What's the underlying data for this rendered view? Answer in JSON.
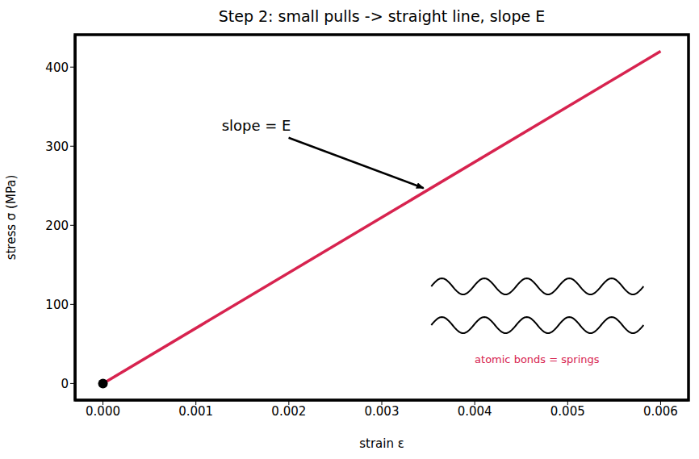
{
  "chart_data": {
    "type": "line",
    "title": "Step 2: small pulls -> straight line, slope E",
    "x_label": "strain ε",
    "y_label": "stress σ (MPa)",
    "x": [
      0,
      0.006
    ],
    "values": [
      0,
      420
    ],
    "color": "#d7234f",
    "points": {
      "x": [
        0
      ],
      "y": [
        0
      ],
      "color": "#000000"
    },
    "xlim": [
      -0.0003,
      0.0063
    ],
    "ylim": [
      -21,
      441
    ],
    "xticks": [
      {
        "value": 0,
        "label": "0.000"
      },
      {
        "value": 0.001,
        "label": "0.001"
      },
      {
        "value": 0.002,
        "label": "0.002"
      },
      {
        "value": 0.003,
        "label": "0.003"
      },
      {
        "value": 0.004,
        "label": "0.004"
      },
      {
        "value": 0.005,
        "label": "0.005"
      },
      {
        "value": 0.006,
        "label": "0.006"
      }
    ],
    "yticks": [
      0,
      100,
      200,
      300,
      400
    ],
    "grid": false,
    "annotations": [
      {
        "text": "slope = E",
        "xy": [
          0.00345,
          247
        ],
        "xytext": [
          0.00165,
          326
        ],
        "color": "#000000"
      },
      {
        "text": "atomic bonds = springs",
        "xytext": [
          0.00467,
          31
        ],
        "color": "#d7234f"
      }
    ]
  }
}
